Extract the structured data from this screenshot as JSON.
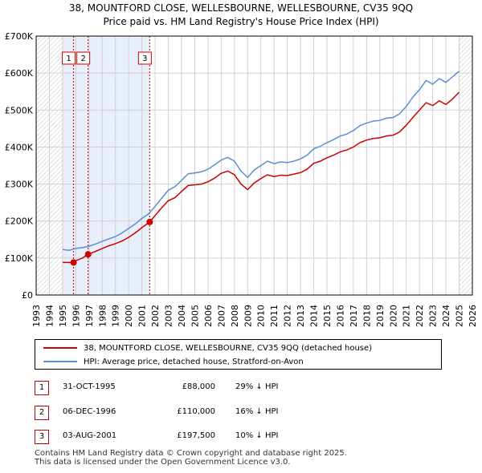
{
  "title_line1": "38, MOUNTFORD CLOSE, WELLESBOURNE, WELLESBOURNE, CV35 9QQ",
  "title_line2": "Price paid vs. HM Land Registry's House Price Index (HPI)",
  "legend": {
    "property": "38, MOUNTFORD CLOSE, WELLESBOURNE, CV35 9QQ (detached house)",
    "hpi": "HPI: Average price, detached house, Stratford-on-Avon"
  },
  "colors": {
    "property": "#cc0000",
    "hpi": "#5b8fd0",
    "shade": "#e8eefa",
    "grid": "#d0d0d0",
    "marker_border": "#cc0000"
  },
  "transactions": [
    {
      "num": "1",
      "date": "31-OCT-1995",
      "price": "£88,000",
      "hpi": "29% ↓ HPI"
    },
    {
      "num": "2",
      "date": "06-DEC-1996",
      "price": "£110,000",
      "hpi": "16% ↓ HPI"
    },
    {
      "num": "3",
      "date": "03-AUG-2001",
      "price": "£197,500",
      "hpi": "10% ↓ HPI"
    }
  ],
  "footer_line1": "Contains HM Land Registry data © Crown copyright and database right 2025.",
  "footer_line2": "This data is licensed under the Open Government Licence v3.0.",
  "chart_data": {
    "type": "line",
    "title": "38, MOUNTFORD CLOSE, WELLESBOURNE, CV35 9QQ — Price paid vs. HM Land Registry's House Price Index (HPI)",
    "xlabel": "",
    "ylabel": "",
    "xlim": [
      1993,
      2026
    ],
    "ylim": [
      0,
      700000
    ],
    "x_ticks": [
      1993,
      1994,
      1995,
      1996,
      1997,
      1998,
      1999,
      2000,
      2001,
      2002,
      2003,
      2004,
      2005,
      2006,
      2007,
      2008,
      2009,
      2010,
      2011,
      2012,
      2013,
      2014,
      2015,
      2016,
      2017,
      2018,
      2019,
      2020,
      2021,
      2022,
      2023,
      2024,
      2025,
      2026
    ],
    "y_ticks": [
      {
        "value": 0,
        "label": "£0"
      },
      {
        "value": 100000,
        "label": "£100K"
      },
      {
        "value": 200000,
        "label": "£200K"
      },
      {
        "value": 300000,
        "label": "£300K"
      },
      {
        "value": 400000,
        "label": "£400K"
      },
      {
        "value": 500000,
        "label": "£500K"
      },
      {
        "value": 600000,
        "label": "£600K"
      },
      {
        "value": 700000,
        "label": "£700K"
      }
    ],
    "shaded_regions": [
      {
        "from": 1995.0,
        "to": 2001.6,
        "label": "transactions period"
      },
      {
        "from": 2025.0,
        "to": 2026.0,
        "label": "future (hatched)"
      }
    ],
    "series": [
      {
        "name": "HPI: Average price, detached house, Stratford-on-Avon",
        "x": [
          1995,
          1995.5,
          1996,
          1996.5,
          1997,
          1997.5,
          1998,
          1998.5,
          1999,
          1999.5,
          2000,
          2000.5,
          2001,
          2001.5,
          2002,
          2002.5,
          2003,
          2003.5,
          2004,
          2004.5,
          2005,
          2005.5,
          2006,
          2006.5,
          2007,
          2007.5,
          2008,
          2008.5,
          2009,
          2009.5,
          2010,
          2010.5,
          2011,
          2011.5,
          2012,
          2012.5,
          2013,
          2013.5,
          2014,
          2014.5,
          2015,
          2015.5,
          2016,
          2016.5,
          2017,
          2017.5,
          2018,
          2018.5,
          2019,
          2019.5,
          2020,
          2020.5,
          2021,
          2021.5,
          2022,
          2022.5,
          2023,
          2023.5,
          2024,
          2024.5,
          2025
        ],
        "values": [
          123000,
          121000,
          126000,
          128000,
          132000,
          138000,
          145000,
          152000,
          158000,
          168000,
          180000,
          192000,
          207000,
          219000,
          240000,
          262000,
          283000,
          293000,
          310000,
          328000,
          330000,
          333000,
          340000,
          352000,
          365000,
          372000,
          362000,
          335000,
          318000,
          338000,
          350000,
          362000,
          355000,
          360000,
          358000,
          362000,
          368000,
          378000,
          395000,
          402000,
          412000,
          420000,
          430000,
          435000,
          445000,
          458000,
          465000,
          470000,
          472000,
          478000,
          480000,
          490000,
          510000,
          535000,
          555000,
          580000,
          570000,
          585000,
          575000,
          590000,
          605000
        ]
      },
      {
        "name": "38, MOUNTFORD CLOSE, WELLESBOURNE, CV35 9QQ (detached house)",
        "x": [
          1995,
          1995.83,
          1996,
          1996.5,
          1996.93,
          1997.5,
          1998,
          1998.5,
          1999,
          1999.5,
          2000,
          2000.5,
          2001,
          2001.59,
          2002,
          2002.5,
          2003,
          2003.5,
          2004,
          2004.5,
          2005,
          2005.5,
          2006,
          2006.5,
          2007,
          2007.5,
          2008,
          2008.5,
          2009,
          2009.5,
          2010,
          2010.5,
          2011,
          2011.5,
          2012,
          2012.5,
          2013,
          2013.5,
          2014,
          2014.5,
          2015,
          2015.5,
          2016,
          2016.5,
          2017,
          2017.5,
          2018,
          2018.5,
          2019,
          2019.5,
          2020,
          2020.5,
          2021,
          2021.5,
          2022,
          2022.5,
          2023,
          2023.5,
          2024,
          2024.5,
          2025
        ],
        "values": [
          88000,
          88000,
          93000,
          100000,
          110000,
          118000,
          126000,
          133000,
          139000,
          146000,
          156000,
          168000,
          182000,
          197500,
          215000,
          236000,
          255000,
          263000,
          280000,
          296000,
          298000,
          300000,
          306000,
          316000,
          329000,
          335000,
          325000,
          300000,
          285000,
          303000,
          315000,
          325000,
          320000,
          324000,
          323000,
          327000,
          331000,
          340000,
          356000,
          362000,
          371000,
          378000,
          387000,
          392000,
          400000,
          412000,
          419000,
          423000,
          425000,
          430000,
          432000,
          441000,
          459000,
          480000,
          500000,
          520000,
          512000,
          525000,
          515000,
          530000,
          548000
        ]
      }
    ],
    "markers": [
      {
        "num": "1",
        "x": 1995.83,
        "value": 88000
      },
      {
        "num": "2",
        "x": 1996.93,
        "value": 110000
      },
      {
        "num": "3",
        "x": 2001.59,
        "value": 197500
      }
    ]
  }
}
